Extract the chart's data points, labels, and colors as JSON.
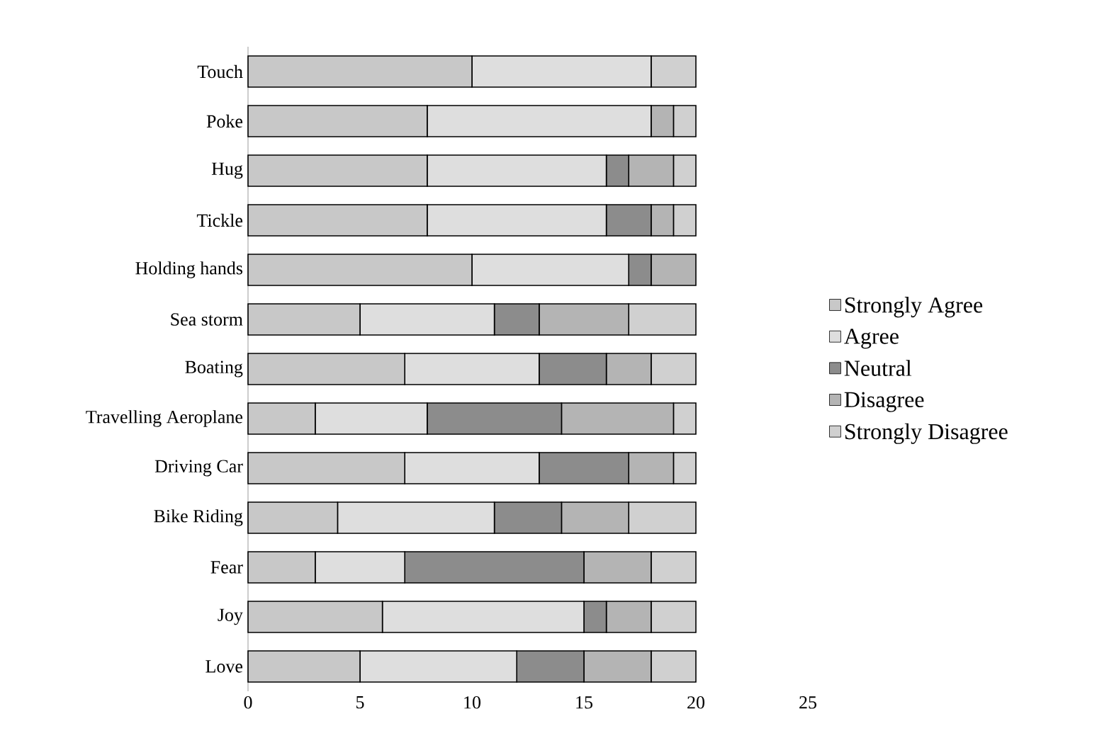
{
  "chart_data": {
    "type": "bar",
    "orientation": "horizontal",
    "stacked": true,
    "categories": [
      "Touch",
      "Poke",
      "Hug",
      "Tickle",
      "Holding hands",
      "Sea storm",
      "Boating",
      "Travelling Aeroplane",
      "Driving Car",
      "Bike Riding",
      "Fear",
      "Joy",
      "Love"
    ],
    "series": [
      {
        "name": "Strongly Agree",
        "color": "#c8c8c8",
        "values": [
          10,
          8,
          8,
          8,
          10,
          5,
          7,
          3,
          7,
          4,
          3,
          6,
          5
        ]
      },
      {
        "name": "Agree",
        "color": "#dedede",
        "values": [
          8,
          10,
          8,
          8,
          7,
          6,
          6,
          5,
          6,
          7,
          4,
          9,
          7
        ]
      },
      {
        "name": "Neutral",
        "color": "#8c8c8c",
        "values": [
          0,
          0,
          1,
          2,
          1,
          2,
          3,
          6,
          4,
          3,
          8,
          1,
          3
        ]
      },
      {
        "name": "Disagree",
        "color": "#b4b4b4",
        "values": [
          0,
          1,
          2,
          1,
          2,
          4,
          2,
          5,
          2,
          3,
          3,
          2,
          3
        ]
      },
      {
        "name": "Strongly Disagree",
        "color": "#d0d0d0",
        "values": [
          2,
          1,
          1,
          1,
          0,
          3,
          2,
          1,
          1,
          3,
          2,
          2,
          2
        ]
      }
    ],
    "xlim": [
      0,
      25
    ],
    "xticks": [
      0,
      5,
      10,
      15,
      20,
      25
    ],
    "grid": false,
    "legend": "right"
  }
}
